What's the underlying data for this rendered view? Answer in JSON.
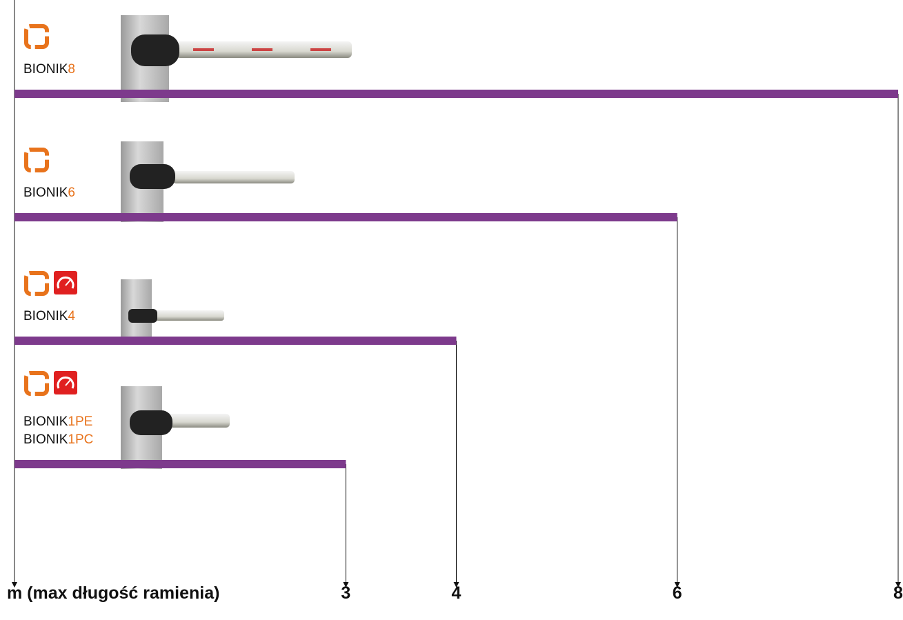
{
  "chart_data": {
    "type": "bar",
    "orientation": "horizontal",
    "x_label": "m (max długość ramienia)",
    "categories": [
      [
        [
          "BIONIK",
          "8"
        ]
      ],
      [
        [
          "BIONIK",
          "6"
        ]
      ],
      [
        [
          "BIONIK",
          "4"
        ]
      ],
      [
        [
          "BIONIK",
          "1PE"
        ],
        [
          "BIONIK",
          "1PC"
        ]
      ]
    ],
    "values": [
      8,
      6,
      4,
      3
    ],
    "color": "#7d3a8c",
    "suffix_color": "#e8731c",
    "xlim": [
      0,
      8
    ],
    "xticks": [
      3,
      4,
      6,
      8
    ]
  }
}
